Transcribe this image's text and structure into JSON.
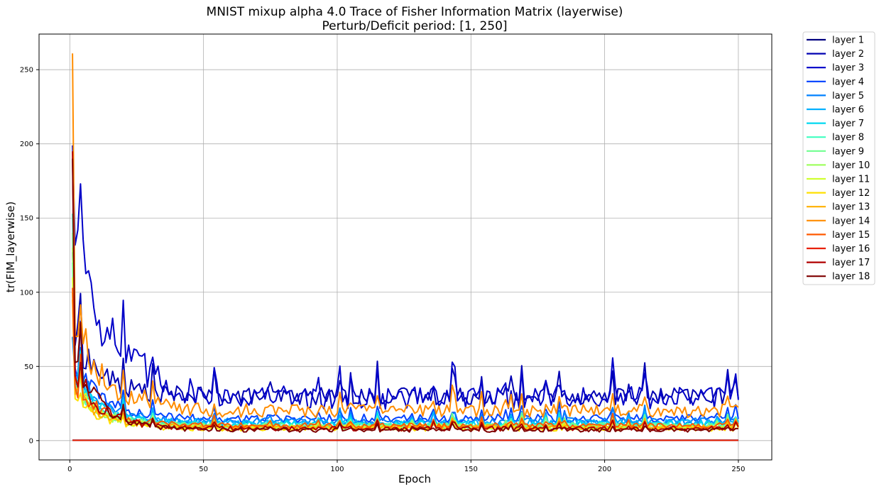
{
  "chart_data": {
    "type": "line",
    "title": "MNIST mixup alpha 4.0 Trace of Fisher Information Matrix (layerwise)",
    "subtitle": "Perturb/Deficit period: [1, 250]",
    "xlabel": "Epoch",
    "ylabel": "tr(FIM_layerwise)",
    "xlim": [
      -11.5,
      262.5
    ],
    "ylim": [
      -13,
      274
    ],
    "xticks": [
      0,
      50,
      100,
      150,
      200,
      250
    ],
    "yticks": [
      0,
      50,
      100,
      150,
      200,
      250
    ],
    "grid": true,
    "legend_position": "outside-right-top",
    "series": [
      {
        "name": "layer 1",
        "color": "#00007f",
        "base": 0.3,
        "amp": 0,
        "tail": 0.3,
        "decay": 10,
        "noise": 0.02
      },
      {
        "name": "layer 2",
        "color": "#0000b2",
        "base": 69,
        "amp": 40,
        "tail": 30,
        "decay": 10,
        "noise": 0.12
      },
      {
        "name": "layer 3",
        "color": "#0000c8",
        "base": 199,
        "amp": 120,
        "tail": 29,
        "decay": 13,
        "noise": 0.17
      },
      {
        "name": "layer 4",
        "color": "#0040ff",
        "base": 127,
        "amp": 38,
        "tail": 15,
        "decay": 10,
        "noise": 0.12
      },
      {
        "name": "layer 5",
        "color": "#0080ff",
        "base": 70,
        "amp": 34,
        "tail": 13,
        "decay": 10,
        "noise": 0.12
      },
      {
        "name": "layer 6",
        "color": "#00b0ff",
        "base": 100,
        "amp": 32,
        "tail": 12,
        "decay": 10,
        "noise": 0.12
      },
      {
        "name": "layer 7",
        "color": "#00d8f0",
        "base": 120,
        "amp": 30,
        "tail": 11,
        "decay": 10,
        "noise": 0.12
      },
      {
        "name": "layer 8",
        "color": "#40ffc0",
        "base": 153,
        "amp": 28,
        "tail": 10,
        "decay": 10,
        "noise": 0.12
      },
      {
        "name": "layer 9",
        "color": "#70ff90",
        "base": 140,
        "amp": 27,
        "tail": 10,
        "decay": 10,
        "noise": 0.12
      },
      {
        "name": "layer 10",
        "color": "#a0ff60",
        "base": 130,
        "amp": 26,
        "tail": 9,
        "decay": 10,
        "noise": 0.12
      },
      {
        "name": "layer 11",
        "color": "#d0ff30",
        "base": 110,
        "amp": 25,
        "tail": 9,
        "decay": 10,
        "noise": 0.12
      },
      {
        "name": "layer 12",
        "color": "#ffe000",
        "base": 100,
        "amp": 22,
        "tail": 8,
        "decay": 10,
        "noise": 0.12
      },
      {
        "name": "layer 13",
        "color": "#ffb000",
        "base": 95,
        "amp": 24,
        "tail": 9,
        "decay": 10,
        "noise": 0.12
      },
      {
        "name": "layer 14",
        "color": "#ff8c00",
        "base": 261,
        "amp": 55,
        "tail": 20,
        "decay": 12,
        "noise": 0.14
      },
      {
        "name": "layer 15",
        "color": "#ff5a00",
        "base": 103,
        "amp": 28,
        "tail": 10,
        "decay": 10,
        "noise": 0.12
      },
      {
        "name": "layer 16",
        "color": "#e82000",
        "base": 0.2,
        "amp": 0,
        "tail": 0.2,
        "decay": 10,
        "noise": 0.02
      },
      {
        "name": "layer 17",
        "color": "#b00000",
        "base": 195,
        "amp": 38,
        "tail": 8,
        "decay": 10,
        "noise": 0.12
      },
      {
        "name": "layer 18",
        "color": "#7f0000",
        "base": 190,
        "amp": 48,
        "tail": 7,
        "decay": 10,
        "noise": 0.12
      }
    ]
  }
}
